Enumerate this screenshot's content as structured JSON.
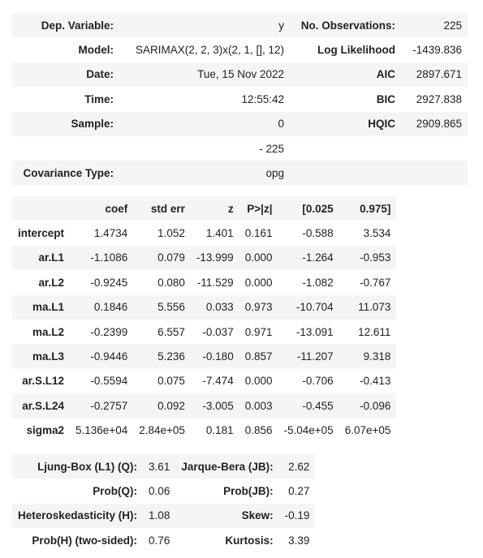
{
  "summary": {
    "rows": [
      {
        "label1": "Dep. Variable:",
        "value1": "y",
        "label2": "No. Observations:",
        "value2": "225"
      },
      {
        "label1": "Model:",
        "value1": "SARIMAX(2, 2, 3)x(2, 1, [], 12)",
        "label2": "Log Likelihood",
        "value2": "-1439.836"
      },
      {
        "label1": "Date:",
        "value1": "Tue, 15 Nov 2022",
        "label2": "AIC",
        "value2": "2897.671"
      },
      {
        "label1": "Time:",
        "value1": "12:55:42",
        "label2": "BIC",
        "value2": "2927.838"
      },
      {
        "label1": "Sample:",
        "value1": "0",
        "label2": "HQIC",
        "value2": "2909.865"
      },
      {
        "label1": "",
        "value1": "- 225",
        "label2": "",
        "value2": ""
      },
      {
        "label1": "Covariance Type:",
        "value1": "opg",
        "label2": "",
        "value2": ""
      }
    ]
  },
  "coefficients": {
    "headers": [
      "",
      "coef",
      "std err",
      "z",
      "P>|z|",
      "[0.025",
      "0.975]"
    ],
    "rows": [
      {
        "name": "intercept",
        "values": [
          "1.4734",
          "1.052",
          "1.401",
          "0.161",
          "-0.588",
          "3.534"
        ]
      },
      {
        "name": "ar.L1",
        "values": [
          "-1.1086",
          "0.079",
          "-13.999",
          "0.000",
          "-1.264",
          "-0.953"
        ]
      },
      {
        "name": "ar.L2",
        "values": [
          "-0.9245",
          "0.080",
          "-11.529",
          "0.000",
          "-1.082",
          "-0.767"
        ]
      },
      {
        "name": "ma.L1",
        "values": [
          "0.1846",
          "5.556",
          "0.033",
          "0.973",
          "-10.704",
          "11.073"
        ]
      },
      {
        "name": "ma.L2",
        "values": [
          "-0.2399",
          "6.557",
          "-0.037",
          "0.971",
          "-13.091",
          "12.611"
        ]
      },
      {
        "name": "ma.L3",
        "values": [
          "-0.9446",
          "5.236",
          "-0.180",
          "0.857",
          "-11.207",
          "9.318"
        ]
      },
      {
        "name": "ar.S.L12",
        "values": [
          "-0.5594",
          "0.075",
          "-7.474",
          "0.000",
          "-0.706",
          "-0.413"
        ]
      },
      {
        "name": "ar.S.L24",
        "values": [
          "-0.2757",
          "0.092",
          "-3.005",
          "0.003",
          "-0.455",
          "-0.096"
        ]
      },
      {
        "name": "sigma2",
        "values": [
          "5.136e+04",
          "2.84e+05",
          "0.181",
          "0.856",
          "-5.04e+05",
          "6.07e+05"
        ]
      }
    ]
  },
  "diagnostics": {
    "rows": [
      {
        "label1": "Ljung-Box (L1) (Q):",
        "value1": "3.61",
        "label2": "Jarque-Bera (JB):",
        "value2": "2.62"
      },
      {
        "label1": "Prob(Q):",
        "value1": "0.06",
        "label2": "Prob(JB):",
        "value2": "0.27"
      },
      {
        "label1": "Heteroskedasticity (H):",
        "value1": "1.08",
        "label2": "Skew:",
        "value2": "-0.19"
      },
      {
        "label1": "Prob(H) (two-sided):",
        "value1": "0.76",
        "label2": "Kurtosis:",
        "value2": "3.39"
      }
    ]
  }
}
